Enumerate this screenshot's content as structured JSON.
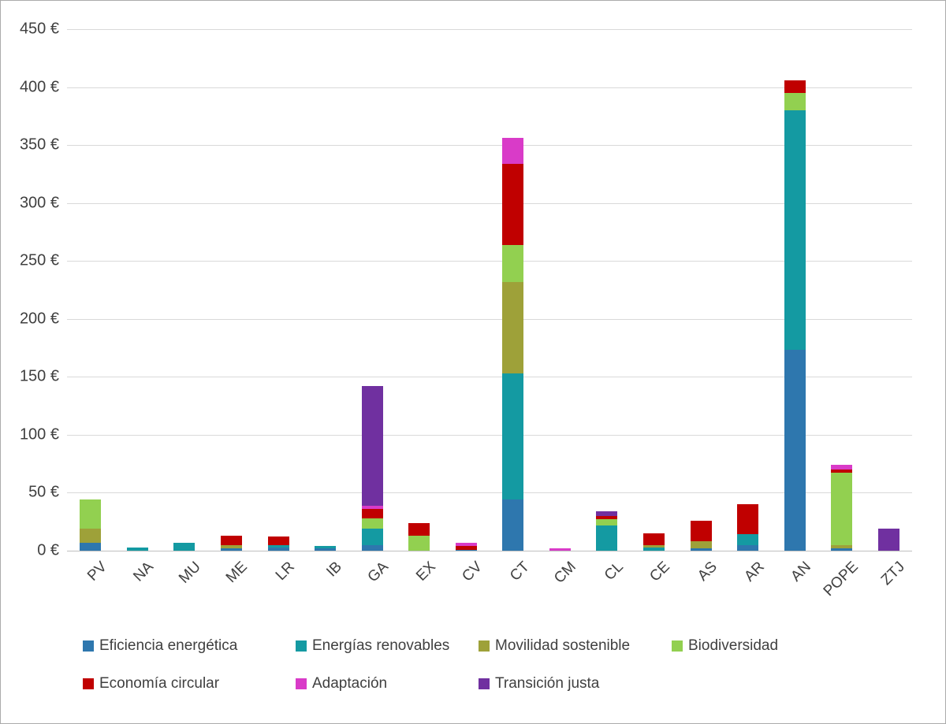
{
  "chart_data": {
    "type": "bar",
    "stacked": true,
    "title": "",
    "categories": [
      "PV",
      "NA",
      "MU",
      "ME",
      "LR",
      "IB",
      "GA",
      "EX",
      "CV",
      "CT",
      "CM",
      "CL",
      "CE",
      "AS",
      "AR",
      "AN",
      "POPE",
      "ZTJ"
    ],
    "series": [
      {
        "name": "Eficiencia energética",
        "color": "#2E77AE",
        "values": [
          7,
          0,
          0,
          2,
          3,
          2,
          5,
          0,
          1,
          44,
          0,
          0,
          0,
          2,
          5,
          173,
          2,
          0
        ]
      },
      {
        "name": "Energías renovables",
        "color": "#149AA2",
        "values": [
          0,
          3,
          7,
          0,
          2,
          2,
          14,
          0,
          0,
          109,
          0,
          22,
          3,
          0,
          9,
          207,
          0,
          0
        ]
      },
      {
        "name": "Movilidad sostenible",
        "color": "#9EA139",
        "values": [
          12,
          0,
          0,
          3,
          0,
          0,
          0,
          0,
          0,
          79,
          0,
          0,
          2,
          6,
          0,
          0,
          3,
          0
        ]
      },
      {
        "name": "Biodiversidad",
        "color": "#92D050",
        "values": [
          25,
          0,
          0,
          0,
          0,
          0,
          9,
          13,
          0,
          32,
          0,
          5,
          0,
          0,
          0,
          15,
          62,
          0
        ]
      },
      {
        "name": "Economía circular",
        "color": "#C00000",
        "values": [
          0,
          0,
          0,
          8,
          7,
          0,
          8,
          11,
          3,
          70,
          0,
          3,
          10,
          18,
          26,
          11,
          3,
          0
        ]
      },
      {
        "name": "Adaptación",
        "color": "#D93BC8",
        "values": [
          0,
          0,
          0,
          0,
          0,
          0,
          3,
          0,
          3,
          22,
          2,
          0,
          0,
          0,
          0,
          0,
          4,
          0
        ]
      },
      {
        "name": "Transición justa",
        "color": "#7030A0",
        "values": [
          0,
          0,
          0,
          0,
          0,
          0,
          103,
          0,
          0,
          0,
          0,
          4,
          0,
          0,
          0,
          0,
          0,
          19
        ]
      }
    ],
    "y_axis": {
      "min": 0,
      "max": 450,
      "step": 50,
      "suffix": " €"
    },
    "xlabel": "",
    "ylabel": "",
    "grid": true,
    "legend_position": "bottom"
  },
  "colors": {
    "grid": "#D9D9D9",
    "axis_line": "#BFBFBF",
    "text": "#404040",
    "background": "#FFFFFF",
    "border": "#ABABAB"
  }
}
